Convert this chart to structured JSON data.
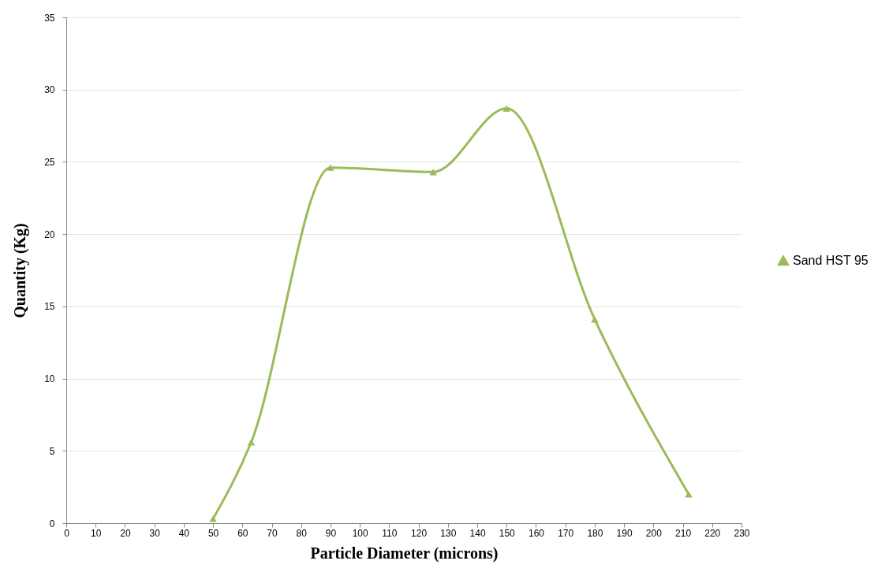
{
  "chart_data": {
    "type": "line",
    "xlabel": "Particle Diameter (microns)",
    "ylabel": "Quantity (Kg)",
    "x": [
      50,
      63,
      90,
      125,
      150,
      180,
      212
    ],
    "series": [
      {
        "name": "Sand HST 95",
        "color": "#9bbb59",
        "values": [
          0.3,
          5.6,
          24.6,
          24.3,
          28.7,
          14.1,
          2.0
        ]
      }
    ],
    "xlim": [
      0,
      230
    ],
    "xticks": [
      0,
      10,
      20,
      30,
      40,
      50,
      60,
      70,
      80,
      90,
      100,
      110,
      120,
      130,
      140,
      150,
      160,
      170,
      180,
      190,
      200,
      210,
      220,
      230
    ],
    "ylim": [
      0,
      35
    ],
    "yticks": [
      0,
      5,
      10,
      15,
      20,
      25,
      30,
      35
    ],
    "grid": "y",
    "legend": "right",
    "marker": "triangle",
    "line_style": "solid"
  }
}
